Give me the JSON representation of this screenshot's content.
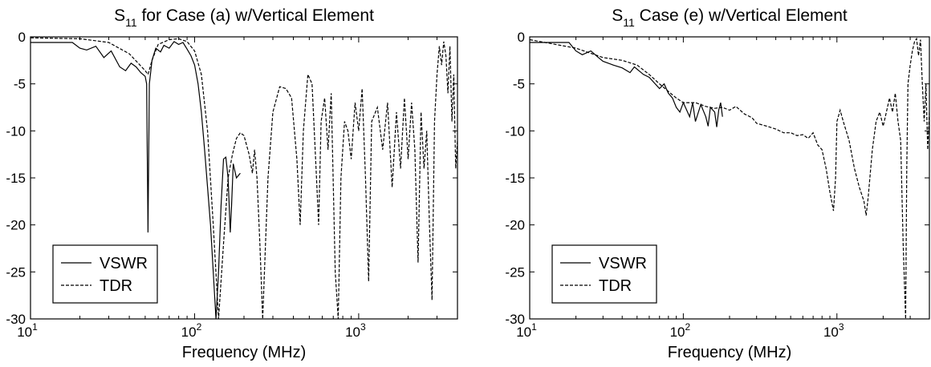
{
  "chart_data": [
    {
      "type": "line",
      "title_main": "S",
      "title_sub": "11",
      "title_rest": " for Case (a) w/Vertical Element",
      "xlabel": "Frequency (MHz)",
      "ylabel": "",
      "x_scale": "log",
      "xlim": [
        10,
        4000
      ],
      "ylim": [
        -30,
        0
      ],
      "x_ticks": [
        {
          "base": "10",
          "exp": "1",
          "value": 10
        },
        {
          "base": "10",
          "exp": "2",
          "value": 100
        },
        {
          "base": "10",
          "exp": "3",
          "value": 1000
        }
      ],
      "y_ticks": [
        "0",
        "-5",
        "-10",
        "-15",
        "-20",
        "-25",
        "-30"
      ],
      "y_tick_values": [
        0,
        -5,
        -10,
        -15,
        -20,
        -25,
        -30
      ],
      "grid": false,
      "legend_position": "bottom-left",
      "series": [
        {
          "name": "VSWR",
          "style": "solid",
          "points": [
            [
              10,
              -0.6
            ],
            [
              18,
              -0.6
            ],
            [
              20,
              -1.2
            ],
            [
              22,
              -1.4
            ],
            [
              25,
              -1.0
            ],
            [
              28,
              -2.2
            ],
            [
              31,
              -1.5
            ],
            [
              35,
              -3.2
            ],
            [
              38,
              -3.6
            ],
            [
              41,
              -2.8
            ],
            [
              44,
              -3.2
            ],
            [
              47,
              -3.8
            ],
            [
              50,
              -4.2
            ],
            [
              51,
              -5
            ],
            [
              52,
              -20.8
            ],
            [
              53,
              -5
            ],
            [
              55,
              -2.5
            ],
            [
              58,
              -1.2
            ],
            [
              62,
              -1.6
            ],
            [
              65,
              -0.9
            ],
            [
              70,
              -1.2
            ],
            [
              75,
              -0.5
            ],
            [
              80,
              -0.8
            ],
            [
              85,
              -0.6
            ],
            [
              90,
              -1.3
            ],
            [
              95,
              -2.0
            ],
            [
              100,
              -3.0
            ],
            [
              105,
              -5.0
            ],
            [
              110,
              -8.0
            ],
            [
              115,
              -12.0
            ],
            [
              120,
              -16.0
            ],
            [
              125,
              -20.0
            ],
            [
              130,
              -25.0
            ],
            [
              135,
              -30.0
            ],
            [
              140,
              -25.0
            ],
            [
              145,
              -18.0
            ],
            [
              150,
              -13.0
            ],
            [
              155,
              -12.8
            ],
            [
              160,
              -15.0
            ],
            [
              165,
              -20.8
            ],
            [
              168,
              -18.0
            ],
            [
              172,
              -13.5
            ],
            [
              180,
              -15.0
            ],
            [
              190,
              -14.5
            ]
          ]
        },
        {
          "name": "TDR",
          "style": "dashed",
          "points": [
            [
              10,
              -0.1
            ],
            [
              20,
              -0.2
            ],
            [
              30,
              -0.6
            ],
            [
              40,
              -1.8
            ],
            [
              50,
              -3.6
            ],
            [
              52,
              -4.0
            ],
            [
              55,
              -2.5
            ],
            [
              60,
              -0.8
            ],
            [
              70,
              -0.3
            ],
            [
              80,
              -0.2
            ],
            [
              90,
              -0.5
            ],
            [
              100,
              -1.5
            ],
            [
              110,
              -4.0
            ],
            [
              120,
              -10.0
            ],
            [
              130,
              -20.0
            ],
            [
              140,
              -30.0
            ],
            [
              150,
              -22.0
            ],
            [
              160,
              -15.0
            ],
            [
              170,
              -12.5
            ],
            [
              180,
              -10.8
            ],
            [
              190,
              -10.2
            ],
            [
              200,
              -10.5
            ],
            [
              215,
              -12.5
            ],
            [
              225,
              -14.5
            ],
            [
              232,
              -12.0
            ],
            [
              240,
              -15.0
            ],
            [
              250,
              -22.0
            ],
            [
              260,
              -30.0
            ],
            [
              280,
              -15.0
            ],
            [
              300,
              -8.0
            ],
            [
              330,
              -5.3
            ],
            [
              360,
              -5.5
            ],
            [
              390,
              -6.5
            ],
            [
              420,
              -13.0
            ],
            [
              440,
              -20.0
            ],
            [
              460,
              -10.0
            ],
            [
              490,
              -4.0
            ],
            [
              520,
              -5.0
            ],
            [
              550,
              -14.0
            ],
            [
              570,
              -20.0
            ],
            [
              590,
              -9.0
            ],
            [
              620,
              -6.5
            ],
            [
              650,
              -12.0
            ],
            [
              680,
              -6.0
            ],
            [
              720,
              -25.0
            ],
            [
              750,
              -30.0
            ],
            [
              780,
              -15.0
            ],
            [
              820,
              -9.0
            ],
            [
              860,
              -10.0
            ],
            [
              900,
              -13.0
            ],
            [
              950,
              -7.0
            ],
            [
              1000,
              -10.0
            ],
            [
              1050,
              -5.5
            ],
            [
              1100,
              -15.0
            ],
            [
              1150,
              -26.0
            ],
            [
              1200,
              -9.0
            ],
            [
              1300,
              -7.5
            ],
            [
              1400,
              -12.0
            ],
            [
              1500,
              -7.0
            ],
            [
              1600,
              -16.0
            ],
            [
              1700,
              -8.0
            ],
            [
              1800,
              -14.0
            ],
            [
              1900,
              -6.5
            ],
            [
              2000,
              -13.0
            ],
            [
              2100,
              -7.0
            ],
            [
              2200,
              -12.0
            ],
            [
              2300,
              -24.0
            ],
            [
              2400,
              -8.0
            ],
            [
              2500,
              -14.0
            ],
            [
              2600,
              -10.0
            ],
            [
              2700,
              -20.0
            ],
            [
              2800,
              -28.0
            ],
            [
              2900,
              -9.0
            ],
            [
              3000,
              -4.0
            ],
            [
              3100,
              -1.0
            ],
            [
              3200,
              -3.0
            ],
            [
              3300,
              -0.5
            ],
            [
              3400,
              -2.0
            ],
            [
              3500,
              -6.0
            ],
            [
              3600,
              -1.0
            ],
            [
              3700,
              -9.0
            ],
            [
              3800,
              -4.0
            ],
            [
              3900,
              -14.0
            ],
            [
              4000,
              -11.0
            ]
          ]
        }
      ]
    },
    {
      "type": "line",
      "title_main": "S",
      "title_sub": "11",
      "title_rest": " Case (e) w/Vertical Element",
      "xlabel": "Frequency (MHz)",
      "ylabel": "",
      "x_scale": "log",
      "xlim": [
        10,
        4000
      ],
      "ylim": [
        -30,
        0
      ],
      "x_ticks": [
        {
          "base": "10",
          "exp": "1",
          "value": 10
        },
        {
          "base": "10",
          "exp": "2",
          "value": 100
        },
        {
          "base": "10",
          "exp": "3",
          "value": 1000
        }
      ],
      "y_ticks": [
        "0",
        "-5",
        "-10",
        "-15",
        "-20",
        "-25",
        "-30"
      ],
      "y_tick_values": [
        0,
        -5,
        -10,
        -15,
        -20,
        -25,
        -30
      ],
      "grid": false,
      "legend_position": "bottom-left",
      "series": [
        {
          "name": "VSWR",
          "style": "solid",
          "points": [
            [
              10,
              -0.6
            ],
            [
              18,
              -0.6
            ],
            [
              20,
              -1.5
            ],
            [
              22,
              -1.9
            ],
            [
              25,
              -1.5
            ],
            [
              28,
              -2.2
            ],
            [
              30,
              -2.6
            ],
            [
              35,
              -3.0
            ],
            [
              40,
              -3.3
            ],
            [
              45,
              -3.8
            ],
            [
              48,
              -3.2
            ],
            [
              55,
              -4.0
            ],
            [
              60,
              -4.3
            ],
            [
              70,
              -5.5
            ],
            [
              75,
              -5.0
            ],
            [
              80,
              -6.0
            ],
            [
              85,
              -6.5
            ],
            [
              90,
              -7.5
            ],
            [
              95,
              -8.0
            ],
            [
              100,
              -7.0
            ],
            [
              110,
              -8.5
            ],
            [
              115,
              -7.0
            ],
            [
              120,
              -9.0
            ],
            [
              130,
              -7.2
            ],
            [
              140,
              -8.5
            ],
            [
              145,
              -9.5
            ],
            [
              150,
              -7.5
            ],
            [
              160,
              -8.0
            ],
            [
              165,
              -9.6
            ],
            [
              170,
              -7.8
            ],
            [
              175,
              -7.0
            ],
            [
              180,
              -8.5
            ]
          ]
        },
        {
          "name": "TDR",
          "style": "dashed",
          "points": [
            [
              10,
              -0.3
            ],
            [
              20,
              -1.2
            ],
            [
              30,
              -2.2
            ],
            [
              40,
              -2.5
            ],
            [
              50,
              -3.0
            ],
            [
              60,
              -4.0
            ],
            [
              70,
              -5.0
            ],
            [
              80,
              -5.8
            ],
            [
              90,
              -6.5
            ],
            [
              100,
              -7.0
            ],
            [
              120,
              -7.0
            ],
            [
              140,
              -7.4
            ],
            [
              160,
              -7.6
            ],
            [
              180,
              -7.5
            ],
            [
              200,
              -7.8
            ],
            [
              220,
              -7.4
            ],
            [
              250,
              -8.2
            ],
            [
              280,
              -8.6
            ],
            [
              300,
              -9.2
            ],
            [
              350,
              -9.5
            ],
            [
              400,
              -9.8
            ],
            [
              450,
              -10.2
            ],
            [
              500,
              -10.2
            ],
            [
              550,
              -10.5
            ],
            [
              600,
              -10.4
            ],
            [
              650,
              -10.8
            ],
            [
              700,
              -10.2
            ],
            [
              750,
              -11.5
            ],
            [
              800,
              -12.0
            ],
            [
              850,
              -14.0
            ],
            [
              900,
              -16.5
            ],
            [
              950,
              -18.5
            ],
            [
              980,
              -15.0
            ],
            [
              1000,
              -9.0
            ],
            [
              1050,
              -7.8
            ],
            [
              1100,
              -9.0
            ],
            [
              1200,
              -11.0
            ],
            [
              1300,
              -14.0
            ],
            [
              1400,
              -16.0
            ],
            [
              1500,
              -17.5
            ],
            [
              1550,
              -19.0
            ],
            [
              1600,
              -17.0
            ],
            [
              1700,
              -12.0
            ],
            [
              1800,
              -9.0
            ],
            [
              1900,
              -8.0
            ],
            [
              2000,
              -9.5
            ],
            [
              2100,
              -8.0
            ],
            [
              2200,
              -6.5
            ],
            [
              2300,
              -8.0
            ],
            [
              2400,
              -6.0
            ],
            [
              2500,
              -9.0
            ],
            [
              2600,
              -11.0
            ],
            [
              2700,
              -22.0
            ],
            [
              2800,
              -30.0
            ],
            [
              2850,
              -14.0
            ],
            [
              2900,
              -5.0
            ],
            [
              3000,
              -3.0
            ],
            [
              3100,
              -1.5
            ],
            [
              3200,
              -0.5
            ],
            [
              3300,
              -0.2
            ],
            [
              3400,
              -2.0
            ],
            [
              3500,
              -0.3
            ],
            [
              3600,
              -5.0
            ],
            [
              3700,
              -9.0
            ],
            [
              3800,
              -5.0
            ],
            [
              3900,
              -12.0
            ],
            [
              4000,
              -8.0
            ]
          ]
        }
      ]
    }
  ]
}
